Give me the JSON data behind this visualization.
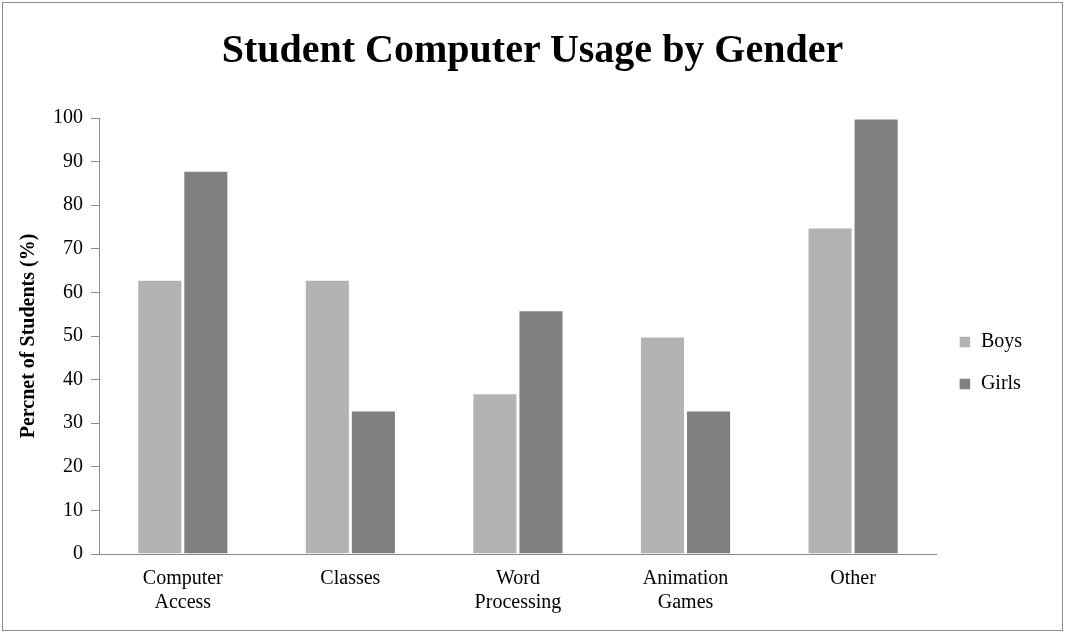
{
  "chart_data": {
    "type": "bar",
    "title": "Student Computer Usage by Gender",
    "ylabel": "Percnet of Students (%)",
    "categories": [
      "Computer Access",
      "Classes",
      "Word Processing",
      "Animation Games",
      "Other"
    ],
    "series": [
      {
        "name": "Boys",
        "color": "#b3b3b3",
        "values": [
          63,
          63,
          37,
          50,
          75
        ]
      },
      {
        "name": "Girls",
        "color": "#808080",
        "values": [
          88,
          33,
          56,
          33,
          100
        ]
      }
    ],
    "ylim": [
      0,
      100
    ],
    "yticks": [
      0,
      10,
      20,
      30,
      40,
      50,
      60,
      70,
      80,
      90,
      100
    ],
    "grid": false,
    "legend": "right"
  }
}
